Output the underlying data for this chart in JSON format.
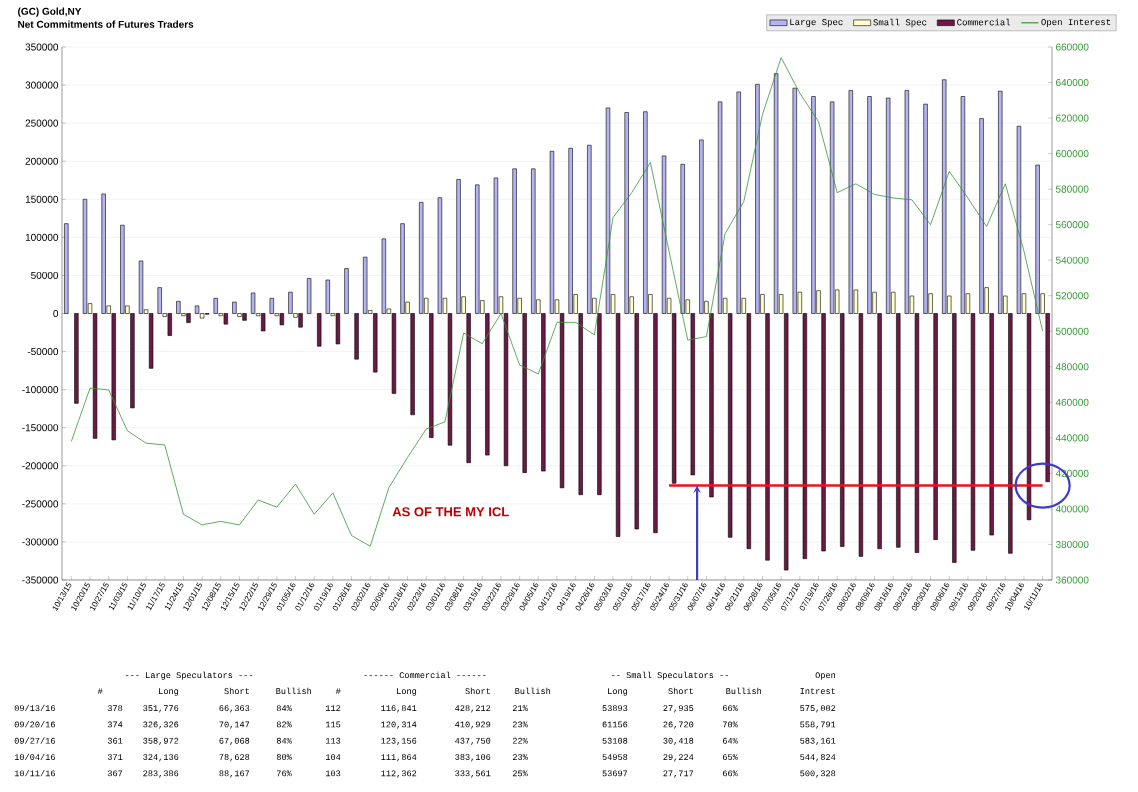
{
  "chart_data": {
    "type": "bar",
    "title": "(GC) Gold,NY",
    "subtitle": "Net Commitments of Futures Traders",
    "categories": [
      "10/13/15",
      "10/20/15",
      "10/27/15",
      "11/03/15",
      "11/10/15",
      "11/17/15",
      "11/24/15",
      "12/01/15",
      "12/08/15",
      "12/15/15",
      "12/22/15",
      "12/29/15",
      "01/05/16",
      "01/12/16",
      "01/19/16",
      "01/26/16",
      "02/02/16",
      "02/09/16",
      "02/16/16",
      "02/23/16",
      "03/01/16",
      "03/08/16",
      "03/15/16",
      "03/22/16",
      "03/29/16",
      "04/05/16",
      "04/12/16",
      "04/19/16",
      "04/26/16",
      "05/03/16",
      "05/10/16",
      "05/17/16",
      "05/24/16",
      "05/31/16",
      "06/07/16",
      "06/14/16",
      "06/21/16",
      "06/28/16",
      "07/05/16",
      "07/12/16",
      "07/19/16",
      "07/26/16",
      "08/02/16",
      "08/09/16",
      "08/16/16",
      "08/23/16",
      "08/30/16",
      "09/06/16",
      "09/13/16",
      "09/20/16",
      "09/27/16",
      "10/04/16",
      "10/11/16"
    ],
    "series": [
      {
        "name": "Large Spec",
        "color": "#b4b4f0",
        "values": [
          118000,
          150000,
          157000,
          116000,
          69000,
          34000,
          16000,
          10000,
          20000,
          15000,
          27000,
          20000,
          28000,
          46000,
          44000,
          59000,
          74000,
          98000,
          118000,
          146000,
          152000,
          176000,
          169000,
          178000,
          190000,
          190000,
          213000,
          217000,
          221000,
          270000,
          264000,
          265000,
          207000,
          196000,
          228000,
          278000,
          291000,
          301000,
          315000,
          296000,
          285000,
          278000,
          293000,
          285000,
          283000,
          293000,
          275000,
          307000,
          285000,
          256000,
          292000,
          246000,
          195000
        ]
      },
      {
        "name": "Small Spec",
        "color": "#ffffcc",
        "values": [
          null,
          13000,
          10000,
          10000,
          5000,
          -4000,
          -3000,
          -6000,
          -3000,
          -4000,
          -3000,
          -3000,
          -5000,
          null,
          -3000,
          null,
          4000,
          6000,
          15000,
          20000,
          20000,
          22000,
          17000,
          22000,
          20000,
          18000,
          18000,
          25000,
          20000,
          25000,
          22000,
          25000,
          20000,
          18000,
          16000,
          20000,
          20000,
          25000,
          25000,
          28000,
          30000,
          31000,
          31000,
          28000,
          28000,
          23000,
          26000,
          23000,
          26000,
          34000,
          23000,
          26000,
          26000
        ]
      },
      {
        "name": "Commercial",
        "color": "#6b1a45",
        "values": [
          -118000,
          -164000,
          -166000,
          -124000,
          -72000,
          -29000,
          -12000,
          -1000,
          -14000,
          -9000,
          -23000,
          -15000,
          -18000,
          -43000,
          -40000,
          -60000,
          -77000,
          -105000,
          -133000,
          -163000,
          -173000,
          -196000,
          -186000,
          -200000,
          -209000,
          -207000,
          -229000,
          -238000,
          -238000,
          -293000,
          -283000,
          -288000,
          -223000,
          -212000,
          -241000,
          -294000,
          -309000,
          -324000,
          -337000,
          -322000,
          -312000,
          -306000,
          -319000,
          -309000,
          -307000,
          -314000,
          -297000,
          -327000,
          -311000,
          -291000,
          -315000,
          -271000,
          -221000
        ]
      },
      {
        "name": "Open Interest",
        "type": "line",
        "axis": "y2",
        "color": "#339933",
        "values": [
          438000,
          468000,
          467000,
          444000,
          437000,
          436000,
          397000,
          391000,
          393000,
          391000,
          405000,
          401000,
          414000,
          397000,
          409000,
          385000,
          379000,
          412000,
          429000,
          445000,
          449000,
          499000,
          493000,
          510000,
          481000,
          476000,
          505000,
          505000,
          498000,
          564000,
          578000,
          595000,
          545000,
          495000,
          497000,
          555000,
          573000,
          622000,
          654000,
          634000,
          618000,
          578000,
          583000,
          577000,
          575000,
          574000,
          560000,
          590000,
          575000,
          559000,
          583000,
          545000,
          500000
        ]
      },
      {
        "type": "line",
        "color": "#e8141c",
        "values": [
          null,
          null,
          null,
          null,
          null,
          null,
          null,
          null,
          null,
          null,
          null,
          null,
          null,
          null,
          null,
          null,
          null,
          null,
          null,
          null,
          null,
          null,
          null,
          null,
          null,
          null,
          null,
          null,
          null,
          null,
          null,
          null,
          -226000,
          -226000,
          -226000,
          -226000,
          -226000,
          -226000,
          -226000,
          -226000,
          -226000,
          -226000,
          -226000,
          -226000,
          -226000,
          -226000,
          -226000,
          -226000,
          -226000,
          -226000,
          -226000,
          -226000,
          -226000
        ]
      }
    ],
    "ylim": [
      -350000,
      350000
    ],
    "yticks": [
      -350000,
      -300000,
      -250000,
      -200000,
      -150000,
      -100000,
      -50000,
      0,
      50000,
      100000,
      150000,
      200000,
      250000,
      300000,
      350000
    ],
    "y2lim": [
      360000,
      660000
    ],
    "y2ticks": [
      360000,
      380000,
      400000,
      420000,
      440000,
      460000,
      480000,
      500000,
      520000,
      540000,
      560000,
      580000,
      600000,
      620000,
      640000,
      660000
    ],
    "grid": "y",
    "legend": "top right",
    "annotations": [
      "AS OF THE MY ICL",
      "--- Large Speculators ---",
      "------ Commercial ------",
      "-- Small Speculators --",
      "Open",
      "#",
      "Long",
      "Short",
      "Bullish",
      "#",
      "Long",
      "Short",
      "Bullish",
      "Long",
      "Short",
      "Bullish",
      "Intrest",
      "09/13/16",
      "378",
      "351,776",
      "66,363",
      "84%",
      "112",
      "116,841",
      "428,212",
      "21%",
      "53893",
      "27,935",
      "66%",
      "575,002",
      "09/20/16",
      "374",
      "326,326",
      "70,147",
      "82%",
      "115",
      "120,314",
      "410,929",
      "23%",
      "61156",
      "26,720",
      "70%",
      "558,791",
      "09/27/16",
      "361",
      "358,972",
      "67,068",
      "84%",
      "113",
      "123,156",
      "437,750",
      "22%",
      "53108",
      "30,418",
      "64%",
      "583,161",
      "10/04/16",
      "371",
      "324,136",
      "78,628",
      "80%",
      "104",
      "111,864",
      "383,106",
      "23%",
      "54958",
      "29,224",
      "65%",
      "544,824",
      "10/11/16",
      "367",
      "283,386",
      "88,167",
      "76%",
      "103",
      "112,362",
      "333,561",
      "25%",
      "53697",
      "27,717",
      "66%",
      "500,328"
    ]
  }
}
